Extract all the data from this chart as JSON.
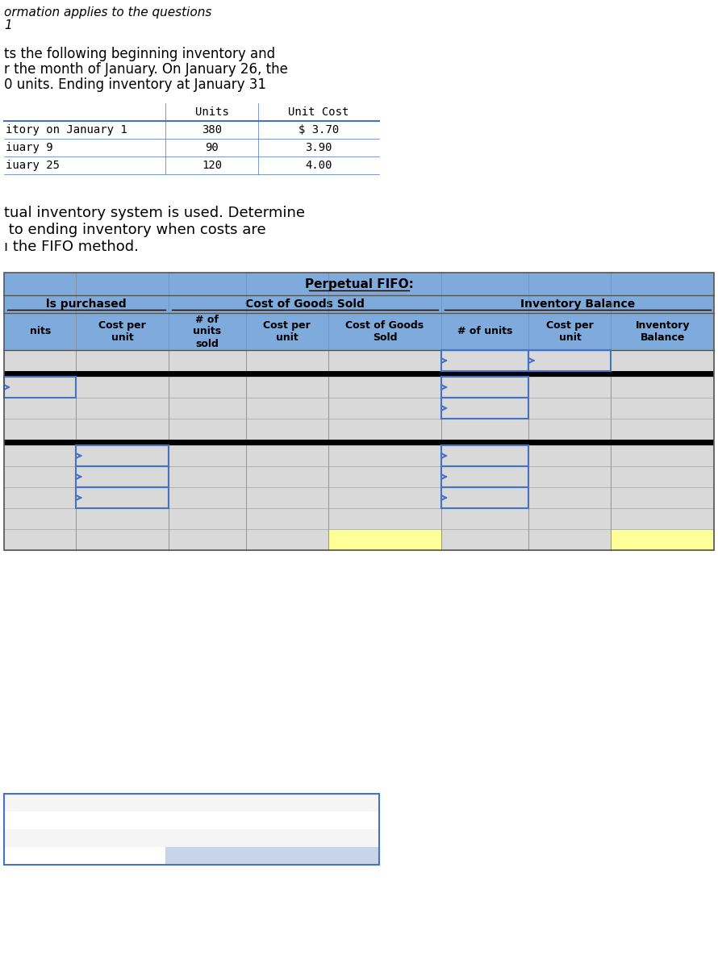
{
  "title_line1": "ormation applies to the questions",
  "title_line2": "1",
  "desc_lines": [
    "ts the following beginning inventory and",
    "r the month of January. On January 26, the",
    "0 units. Ending inventory at January 31"
  ],
  "top_table_rows": [
    [
      "itory on January 1",
      "380",
      "$ 3.70"
    ],
    [
      "iuary 9",
      "90",
      "3.90"
    ],
    [
      "iuary 25",
      "120",
      "4.00"
    ]
  ],
  "middle_text": [
    "tual inventory system is used. Determine",
    " to ending inventory when costs are",
    "ı the FIFO method."
  ],
  "bottom_table_title": "Perpetual FIFO:",
  "group_headers": [
    "ls purchased",
    "Cost of Goods Sold",
    "Inventory Balance"
  ],
  "col_headers": [
    "nits",
    "Cost per\nunit",
    "# of\nunits\nsold",
    "Cost per\nunit",
    "Cost of Goods\nSold",
    "# of units",
    "Cost per\nunit",
    "Inventory\nBalance"
  ],
  "header_bg": "#7faadc",
  "cell_bg_light": "#d9d9d9",
  "cell_bg_yellow": "#ffff99",
  "top_table_header_bg": "#c8d4e8",
  "top_table_border": "#4472c4",
  "black_row_color": "#000000",
  "arrow_color": "#4472c4"
}
